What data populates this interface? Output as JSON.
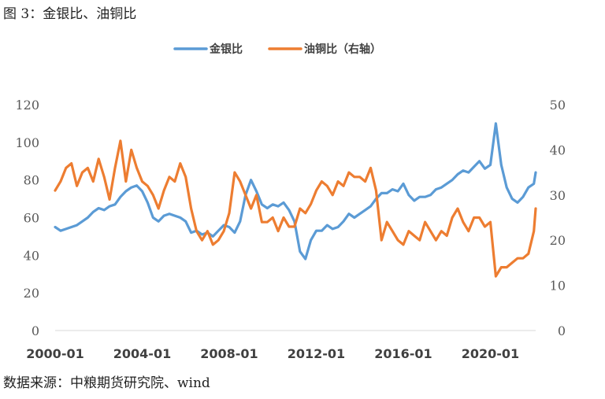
{
  "figure": {
    "title": "图 3：金银比、油铜比",
    "source": "数据来源：中粮期货研究院、wind"
  },
  "chart_data": {
    "type": "line",
    "title": "",
    "xlabel": "",
    "ylabel": "",
    "x_range": [
      "2000-01",
      "2022-02"
    ],
    "x_tick_labels": [
      "2000-01",
      "2004-01",
      "2008-01",
      "2012-01",
      "2016-01",
      "2020-01"
    ],
    "y_left": {
      "range": [
        0,
        120
      ],
      "ticks": [
        "0",
        "20",
        "40",
        "60",
        "80",
        "100",
        "120"
      ]
    },
    "y_right": {
      "range": [
        0,
        50
      ],
      "ticks": [
        "0",
        "10",
        "20",
        "30",
        "40",
        "50"
      ]
    },
    "grid": false,
    "legend_position": "top",
    "series": [
      {
        "name": "金银比",
        "axis": "left",
        "color": "#5B9BD5",
        "points": [
          [
            "2000-01",
            55
          ],
          [
            "2000-04",
            53
          ],
          [
            "2000-07",
            54
          ],
          [
            "2000-10",
            55
          ],
          [
            "2001-01",
            56
          ],
          [
            "2001-04",
            58
          ],
          [
            "2001-07",
            60
          ],
          [
            "2001-10",
            63
          ],
          [
            "2002-01",
            65
          ],
          [
            "2002-04",
            64
          ],
          [
            "2002-07",
            66
          ],
          [
            "2002-10",
            67
          ],
          [
            "2003-01",
            71
          ],
          [
            "2003-04",
            74
          ],
          [
            "2003-07",
            76
          ],
          [
            "2003-10",
            77
          ],
          [
            "2004-01",
            74
          ],
          [
            "2004-04",
            68
          ],
          [
            "2004-07",
            60
          ],
          [
            "2004-10",
            58
          ],
          [
            "2005-01",
            61
          ],
          [
            "2005-04",
            62
          ],
          [
            "2005-07",
            61
          ],
          [
            "2005-10",
            60
          ],
          [
            "2006-01",
            58
          ],
          [
            "2006-04",
            52
          ],
          [
            "2006-07",
            53
          ],
          [
            "2006-10",
            51
          ],
          [
            "2007-01",
            52
          ],
          [
            "2007-04",
            50
          ],
          [
            "2007-07",
            53
          ],
          [
            "2007-10",
            56
          ],
          [
            "2008-01",
            55
          ],
          [
            "2008-04",
            52
          ],
          [
            "2008-07",
            58
          ],
          [
            "2008-10",
            72
          ],
          [
            "2009-01",
            80
          ],
          [
            "2009-04",
            74
          ],
          [
            "2009-07",
            67
          ],
          [
            "2009-10",
            65
          ],
          [
            "2010-01",
            67
          ],
          [
            "2010-04",
            66
          ],
          [
            "2010-07",
            68
          ],
          [
            "2010-10",
            64
          ],
          [
            "2011-01",
            58
          ],
          [
            "2011-04",
            42
          ],
          [
            "2011-07",
            38
          ],
          [
            "2011-10",
            48
          ],
          [
            "2012-01",
            53
          ],
          [
            "2012-04",
            53
          ],
          [
            "2012-07",
            56
          ],
          [
            "2012-10",
            54
          ],
          [
            "2013-01",
            55
          ],
          [
            "2013-04",
            58
          ],
          [
            "2013-07",
            62
          ],
          [
            "2013-10",
            60
          ],
          [
            "2014-01",
            62
          ],
          [
            "2014-04",
            64
          ],
          [
            "2014-07",
            66
          ],
          [
            "2014-10",
            70
          ],
          [
            "2015-01",
            73
          ],
          [
            "2015-04",
            73
          ],
          [
            "2015-07",
            75
          ],
          [
            "2015-10",
            74
          ],
          [
            "2016-01",
            78
          ],
          [
            "2016-04",
            72
          ],
          [
            "2016-07",
            69
          ],
          [
            "2016-10",
            71
          ],
          [
            "2017-01",
            71
          ],
          [
            "2017-04",
            72
          ],
          [
            "2017-07",
            75
          ],
          [
            "2017-10",
            76
          ],
          [
            "2018-01",
            78
          ],
          [
            "2018-04",
            80
          ],
          [
            "2018-07",
            83
          ],
          [
            "2018-10",
            85
          ],
          [
            "2019-01",
            84
          ],
          [
            "2019-04",
            87
          ],
          [
            "2019-07",
            90
          ],
          [
            "2019-10",
            86
          ],
          [
            "2020-01",
            88
          ],
          [
            "2020-04",
            110
          ],
          [
            "2020-07",
            88
          ],
          [
            "2020-10",
            76
          ],
          [
            "2021-01",
            70
          ],
          [
            "2021-04",
            68
          ],
          [
            "2021-07",
            71
          ],
          [
            "2021-10",
            76
          ],
          [
            "2022-01",
            78
          ],
          [
            "2022-02",
            84
          ]
        ]
      },
      {
        "name": "油铜比（右轴）",
        "axis": "right",
        "color": "#ED7D31",
        "points": [
          [
            "2000-01",
            31
          ],
          [
            "2000-04",
            33
          ],
          [
            "2000-07",
            36
          ],
          [
            "2000-10",
            37
          ],
          [
            "2001-01",
            32
          ],
          [
            "2001-04",
            35
          ],
          [
            "2001-07",
            36
          ],
          [
            "2001-10",
            33
          ],
          [
            "2002-01",
            38
          ],
          [
            "2002-04",
            34
          ],
          [
            "2002-07",
            29
          ],
          [
            "2002-10",
            36
          ],
          [
            "2003-01",
            42
          ],
          [
            "2003-04",
            33
          ],
          [
            "2003-07",
            40
          ],
          [
            "2003-10",
            36
          ],
          [
            "2004-01",
            33
          ],
          [
            "2004-04",
            32
          ],
          [
            "2004-07",
            30
          ],
          [
            "2004-10",
            27
          ],
          [
            "2005-01",
            31
          ],
          [
            "2005-04",
            34
          ],
          [
            "2005-07",
            33
          ],
          [
            "2005-10",
            37
          ],
          [
            "2006-01",
            34
          ],
          [
            "2006-04",
            27
          ],
          [
            "2006-07",
            22
          ],
          [
            "2006-10",
            20
          ],
          [
            "2007-01",
            22
          ],
          [
            "2007-04",
            19
          ],
          [
            "2007-07",
            20
          ],
          [
            "2007-10",
            22
          ],
          [
            "2008-01",
            26
          ],
          [
            "2008-04",
            35
          ],
          [
            "2008-07",
            33
          ],
          [
            "2008-10",
            30
          ],
          [
            "2009-01",
            27
          ],
          [
            "2009-04",
            30
          ],
          [
            "2009-07",
            24
          ],
          [
            "2009-10",
            24
          ],
          [
            "2010-01",
            25
          ],
          [
            "2010-04",
            22
          ],
          [
            "2010-07",
            25
          ],
          [
            "2010-10",
            23
          ],
          [
            "2011-01",
            23
          ],
          [
            "2011-04",
            27
          ],
          [
            "2011-07",
            26
          ],
          [
            "2011-10",
            28
          ],
          [
            "2012-01",
            31
          ],
          [
            "2012-04",
            33
          ],
          [
            "2012-07",
            32
          ],
          [
            "2012-10",
            30
          ],
          [
            "2013-01",
            33
          ],
          [
            "2013-04",
            32
          ],
          [
            "2013-07",
            35
          ],
          [
            "2013-10",
            34
          ],
          [
            "2014-01",
            34
          ],
          [
            "2014-04",
            33
          ],
          [
            "2014-07",
            36
          ],
          [
            "2014-10",
            31
          ],
          [
            "2015-01",
            20
          ],
          [
            "2015-04",
            24
          ],
          [
            "2015-07",
            22
          ],
          [
            "2015-10",
            20
          ],
          [
            "2016-01",
            19
          ],
          [
            "2016-04",
            22
          ],
          [
            "2016-07",
            21
          ],
          [
            "2016-10",
            20
          ],
          [
            "2017-01",
            24
          ],
          [
            "2017-04",
            22
          ],
          [
            "2017-07",
            20
          ],
          [
            "2017-10",
            22
          ],
          [
            "2018-01",
            21
          ],
          [
            "2018-04",
            25
          ],
          [
            "2018-07",
            27
          ],
          [
            "2018-10",
            24
          ],
          [
            "2019-01",
            22
          ],
          [
            "2019-04",
            25
          ],
          [
            "2019-07",
            25
          ],
          [
            "2019-10",
            23
          ],
          [
            "2020-01",
            24
          ],
          [
            "2020-04",
            12
          ],
          [
            "2020-07",
            14
          ],
          [
            "2020-10",
            14
          ],
          [
            "2021-01",
            15
          ],
          [
            "2021-04",
            16
          ],
          [
            "2021-07",
            16
          ],
          [
            "2021-10",
            17
          ],
          [
            "2022-01",
            22
          ],
          [
            "2022-02",
            27
          ]
        ]
      }
    ]
  }
}
